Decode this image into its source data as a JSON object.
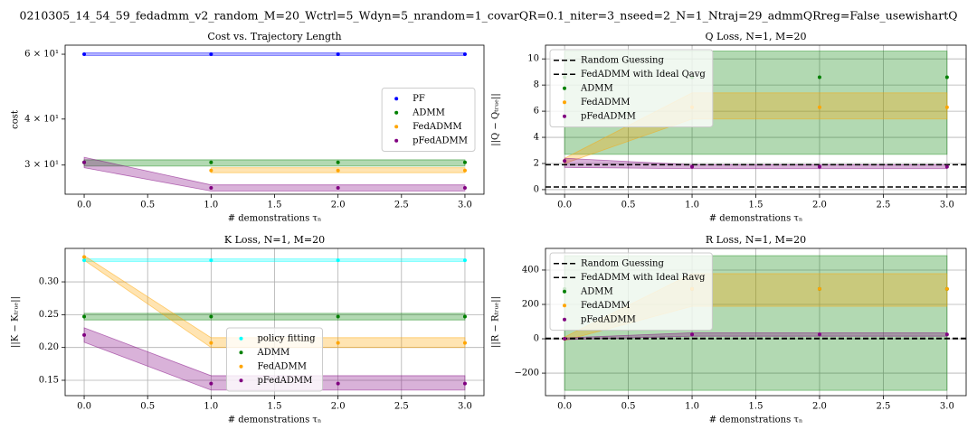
{
  "title": "0210305_14_54_59_fedadmm_v2_random_M=20_Wctrl=5_Wdyn=5_nrandom=1_covarQR=0.1_niter=3_nseed=2_N=1_Ntraj=29_admmQRreg=False_usewishartQ",
  "chart_data": [
    {
      "type": "scatter",
      "title": "Cost vs. Trajectory Length",
      "xlabel": "# demonstrations τₙ",
      "ylabel": "cost",
      "yscale": "log",
      "grid": false,
      "legend": "right",
      "x": [
        0,
        1,
        2,
        3
      ],
      "xlim": [
        -0.15,
        3.15
      ],
      "xticks": [
        {
          "value": 0,
          "label": "0.0"
        },
        0.5,
        {
          "value": 1,
          "label": "1.0"
        },
        1.5,
        {
          "value": 2,
          "label": "2.0"
        },
        2.5,
        {
          "value": 3,
          "label": "3.0"
        }
      ],
      "ylim": [
        25,
        63.5
      ],
      "yticks": [
        {
          "value": 30,
          "label": "3 × 10¹"
        },
        {
          "value": 40,
          "label": "4 × 10¹"
        },
        {
          "value": 60,
          "label": "6 × 10¹"
        }
      ],
      "hlines": [],
      "series": [
        {
          "name": "PF",
          "color": "#0000ff",
          "values": [
            60,
            60,
            60,
            60
          ],
          "lower": [
            59.5,
            59.5,
            59.5,
            59.5
          ],
          "upper": [
            60.5,
            60.5,
            60.5,
            60.5
          ]
        },
        {
          "name": "ADMM",
          "color": "#008000",
          "values": [
            30.5,
            30.5,
            30.5,
            30.5
          ],
          "lower": [
            29.8,
            29.8,
            29.8,
            29.8
          ],
          "upper": [
            31,
            31,
            31,
            31
          ]
        },
        {
          "name": "FedADMM",
          "color": "#ffa500",
          "values": [
            null,
            29,
            29,
            29
          ],
          "lower": [
            null,
            28.6,
            28.6,
            28.6
          ],
          "upper": [
            null,
            29.5,
            29.5,
            29.5
          ]
        },
        {
          "name": "pFedADMM",
          "color": "#800080",
          "values": [
            30.5,
            26,
            26,
            26
          ],
          "lower": [
            29.5,
            25.5,
            25.5,
            25.5
          ],
          "upper": [
            31.5,
            26.5,
            26.5,
            26.5
          ]
        }
      ]
    },
    {
      "type": "scatter",
      "title": "Q Loss, N=1, M=20",
      "xlabel": "# demonstrations τₙ",
      "ylabel": "||Q − Qₜᵣᵤₑ||",
      "grid": true,
      "legend": "upper left",
      "x": [
        0,
        1,
        2,
        3
      ],
      "xlim": [
        -0.15,
        3.15
      ],
      "xticks": [
        {
          "value": 0,
          "label": "0.0"
        },
        0.5,
        {
          "value": 1,
          "label": "1.0"
        },
        1.5,
        {
          "value": 2,
          "label": "2.0"
        },
        2.5,
        {
          "value": 3,
          "label": "3.0"
        }
      ],
      "ylim": [
        -0.35,
        11.05
      ],
      "yticks": [
        0,
        2,
        4,
        6,
        8,
        10
      ],
      "hlines": [
        {
          "name": "Random Guessing",
          "color": "#000000",
          "style": "dashed",
          "value": 1.9
        },
        {
          "name": "FedADMM with Ideal Qavg",
          "color": "#000000",
          "style": "dashed",
          "value": 0.2
        }
      ],
      "series": [
        {
          "name": "ADMM",
          "color": "#008000",
          "values": [
            8.6,
            8.6,
            8.6,
            8.6
          ],
          "lower": [
            2.7,
            2.7,
            2.7,
            2.7
          ],
          "upper": [
            10.6,
            10.6,
            10.6,
            10.6
          ]
        },
        {
          "name": "FedADMM",
          "color": "#ffa500",
          "values": [
            2.2,
            6.3,
            6.3,
            6.3
          ],
          "lower": [
            2,
            5.4,
            5.4,
            5.4
          ],
          "upper": [
            2.4,
            7.4,
            7.4,
            7.4
          ]
        },
        {
          "name": "pFedADMM",
          "color": "#800080",
          "values": [
            2.2,
            1.75,
            1.75,
            1.75
          ],
          "lower": [
            1.7,
            1.6,
            1.6,
            1.6
          ],
          "upper": [
            2.4,
            1.9,
            1.9,
            1.9
          ]
        }
      ]
    },
    {
      "type": "scatter",
      "title": "K Loss, N=1, M=20",
      "xlabel": "# demonstrations τₙ",
      "ylabel": "||K − Kₜᵣᵤₑ||",
      "grid": true,
      "legend": "lower center",
      "x": [
        0,
        1,
        2,
        3
      ],
      "xlim": [
        -0.15,
        3.15
      ],
      "xticks": [
        {
          "value": 0,
          "label": "0.0"
        },
        0.5,
        {
          "value": 1,
          "label": "1.0"
        },
        1.5,
        {
          "value": 2,
          "label": "2.0"
        },
        2.5,
        {
          "value": 3,
          "label": "3.0"
        }
      ],
      "ylim": [
        0.1266,
        0.351
      ],
      "yticks": [
        0.15,
        {
          "value": 0.2,
          "label": "0.20"
        },
        0.25,
        {
          "value": 0.3,
          "label": "0.30"
        }
      ],
      "hlines": [],
      "series": [
        {
          "name": "policy fitting",
          "color": "#00ffff",
          "values": [
            0.333,
            0.333,
            0.333,
            0.333
          ],
          "lower": [
            0.331,
            0.331,
            0.331,
            0.331
          ],
          "upper": [
            0.335,
            0.335,
            0.335,
            0.335
          ]
        },
        {
          "name": "ADMM",
          "color": "#008000",
          "values": [
            0.247,
            0.247,
            0.247,
            0.247
          ],
          "lower": [
            0.242,
            0.242,
            0.242,
            0.242
          ],
          "upper": [
            0.252,
            0.252,
            0.252,
            0.252
          ]
        },
        {
          "name": "FedADMM",
          "color": "#ffa500",
          "values": [
            0.338,
            0.207,
            0.207,
            0.207
          ],
          "lower": [
            0.333,
            0.2,
            0.2,
            0.2
          ],
          "upper": [
            0.34,
            0.215,
            0.215,
            0.215
          ]
        },
        {
          "name": "pFedADMM",
          "color": "#800080",
          "values": [
            0.219,
            0.145,
            0.145,
            0.145
          ],
          "lower": [
            0.208,
            0.135,
            0.135,
            0.135
          ],
          "upper": [
            0.23,
            0.157,
            0.157,
            0.157
          ]
        }
      ]
    },
    {
      "type": "scatter",
      "title": "R Loss, N=1, M=20",
      "xlabel": "# demonstrations τₙ",
      "ylabel": "||R − Rₜᵣᵤₑ||",
      "grid": true,
      "legend": "upper left",
      "x": [
        0,
        1,
        2,
        3
      ],
      "xlim": [
        -0.15,
        3.15
      ],
      "xticks": [
        {
          "value": 0,
          "label": "0.0"
        },
        0.5,
        {
          "value": 1,
          "label": "1.0"
        },
        1.5,
        {
          "value": 2,
          "label": "2.0"
        },
        2.5,
        {
          "value": 3,
          "label": "3.0"
        }
      ],
      "ylim": [
        -331,
        526
      ],
      "yticks": [
        {
          "value": -200,
          "label": "−200"
        },
        0,
        200,
        400
      ],
      "hlines": [
        {
          "name": "Random Guessing",
          "color": "#000000",
          "style": "dashed",
          "value": 3
        },
        {
          "name": "FedADMM with Ideal Ravg",
          "color": "#000000",
          "style": "dashed",
          "value": 0
        }
      ],
      "series": [
        {
          "name": "ADMM",
          "color": "#008000",
          "values": [
            290,
            290,
            290,
            290
          ],
          "lower": [
            -300,
            -300,
            -300,
            -300
          ],
          "upper": [
            484,
            484,
            484,
            484
          ]
        },
        {
          "name": "FedADMM",
          "color": "#ffa500",
          "values": [
            0,
            290,
            290,
            290
          ],
          "lower": [
            -10,
            189,
            189,
            189
          ],
          "upper": [
            10,
            379,
            379,
            379
          ]
        },
        {
          "name": "pFedADMM",
          "color": "#800080",
          "values": [
            0,
            25,
            25,
            25
          ],
          "lower": [
            -5,
            15,
            15,
            15
          ],
          "upper": [
            5,
            35,
            35,
            35
          ]
        }
      ]
    }
  ]
}
